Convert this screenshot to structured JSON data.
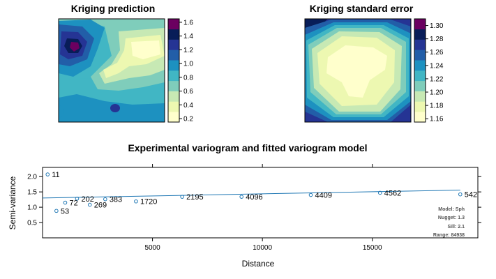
{
  "chart_data": [
    {
      "type": "heatmap",
      "title": "Kriging prediction",
      "colorbar": {
        "ticks": [
          "0.2",
          "0.4",
          "0.6",
          "0.8",
          "1.0",
          "1.2",
          "1.4",
          "1.6"
        ],
        "range": [
          0.15,
          1.65
        ],
        "colors": [
          "#ffffcc",
          "#edf8b1",
          "#c7e9b4",
          "#7fcdbb",
          "#41b6c4",
          "#1d91c0",
          "#225ea8",
          "#253494",
          "#081d58",
          "#6b0060"
        ]
      }
    },
    {
      "type": "heatmap",
      "title": "Kriging standard error",
      "colorbar": {
        "ticks": [
          "1.16",
          "1.18",
          "1.20",
          "1.22",
          "1.24",
          "1.26",
          "1.28",
          "1.30"
        ],
        "range": [
          1.155,
          1.31
        ],
        "colors": [
          "#ffffcc",
          "#edf8b1",
          "#c7e9b4",
          "#7fcdbb",
          "#41b6c4",
          "#1d91c0",
          "#225ea8",
          "#253494",
          "#081d58",
          "#6b0060"
        ]
      }
    },
    {
      "type": "scatter",
      "title": "Experimental variogram and fitted variogram model",
      "xlabel": "Distance",
      "ylabel": "Semi-variance",
      "xlim": [
        0,
        19800
      ],
      "ylim": [
        0,
        2.3
      ],
      "xticks": [
        5000,
        10000,
        15000
      ],
      "yticks": [
        0.5,
        1.0,
        1.5,
        2.0
      ],
      "points": [
        {
          "x": 230,
          "y": 2.07,
          "label": "11"
        },
        {
          "x": 630,
          "y": 0.88,
          "label": "53"
        },
        {
          "x": 1030,
          "y": 1.15,
          "label": "72"
        },
        {
          "x": 1570,
          "y": 1.28,
          "label": "202"
        },
        {
          "x": 2150,
          "y": 1.08,
          "label": "269"
        },
        {
          "x": 2850,
          "y": 1.26,
          "label": "383"
        },
        {
          "x": 4250,
          "y": 1.19,
          "label": "1720"
        },
        {
          "x": 6350,
          "y": 1.34,
          "label": "2195"
        },
        {
          "x": 9050,
          "y": 1.34,
          "label": "4096"
        },
        {
          "x": 12200,
          "y": 1.4,
          "label": "4409"
        },
        {
          "x": 15350,
          "y": 1.47,
          "label": "4562"
        },
        {
          "x": 19000,
          "y": 1.42,
          "label": "542"
        }
      ],
      "model_line": {
        "x": [
          0,
          19000
        ],
        "y": [
          1.3,
          1.56
        ]
      },
      "legend": {
        "model": "Model: Sph",
        "nugget": "Nugget: 1.3",
        "sill": "Sill: 2.1",
        "range": "Range: 84938"
      },
      "color": "#1f77b4"
    }
  ]
}
